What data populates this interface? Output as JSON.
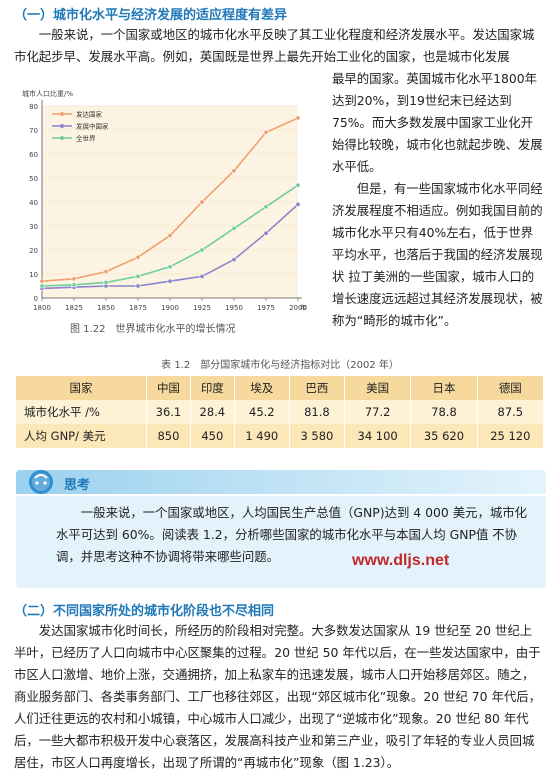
{
  "section1": {
    "title": "（一）城市化水平与经济发展的适应程度有差异",
    "para1_full": "一般来说，一个国家或地区的城市化水平反映了其工业化程度和经济发展水平。发达国家城市化起步早、发展水平高。例如，英国既是世界上最先开始工业化的国家，也是城市化发展",
    "para1_right": "最早的国家。英国城市化水平1800年达到20%，到19世纪末已经达到75%。而大多数发展中国家工业化开始得比较晚，城市化也就起步晚、发展水平低。",
    "para2_right": "但是，有一些国家城市化水平同经济发展程度不相适应。例如我国目前的城市化水平只有40%左右，低于世界平均水平，也落后于我国的经济发展现状 拉丁美洲的一些国家，城市人口的增长速度远远超过其经济发展现状，被称为“畸形的城市化”。"
  },
  "figure": {
    "caption": "图 1.22　世界城市化水平的增长情况"
  },
  "chart_data": {
    "type": "line",
    "ylabel": "城市人口比重/%",
    "xlabel": "年",
    "x": [
      1800,
      1825,
      1850,
      1875,
      1900,
      1925,
      1950,
      1975,
      2000
    ],
    "ylim": [
      0,
      80
    ],
    "yticks": [
      0,
      10,
      20,
      30,
      40,
      50,
      60,
      70,
      80
    ],
    "series": [
      {
        "name": "发达国家",
        "color": "#f0a070",
        "values": [
          7,
          8,
          11,
          17,
          26,
          40,
          53,
          69,
          75
        ]
      },
      {
        "name": "发展中国家",
        "color": "#8a84cc",
        "values": [
          4,
          4.5,
          5,
          5,
          7,
          9,
          16,
          27,
          39
        ]
      },
      {
        "name": "全世界",
        "color": "#6fcf9e",
        "values": [
          5,
          5.5,
          6.5,
          9,
          13,
          20,
          29,
          38,
          47
        ]
      }
    ],
    "legend_position": "top-left"
  },
  "table": {
    "caption": "表 1.2　部分国家城市化与经济指标对比（2002 年）",
    "header": [
      "国家",
      "中国",
      "印度",
      "埃及",
      "巴西",
      "美国",
      "日本",
      "德国"
    ],
    "rows": [
      [
        "城市化水平 /%",
        "36.1",
        "28.4",
        "45.2",
        "81.8",
        "77.2",
        "78.8",
        "87.5"
      ],
      [
        "人均 GNP/ 美元",
        "850",
        "450",
        "1 490",
        "3 580",
        "34 100",
        "35 620",
        "25 120"
      ]
    ]
  },
  "think": {
    "title": "思考",
    "text": "一般来说，一个国家或地区，人均国民生产总值（GNP)达到 4 000 美元，城市化水平可达到 60%。阅读表 1.2，分析哪些国家的城市化水平与本国人均 GNP值 不协调，并思考这种不协调将带来哪些问题。"
  },
  "watermark": "www.dljs.net",
  "section2": {
    "title": "（二）不同国家所处的城市化阶段也不尽相同",
    "para": "发达国家城市化时间长，所经历的阶段相对完整。大多数发达国家从 19 世纪至 20 世纪上半叶，已经历了人口向城市中心区聚集的过程。20 世纪 50 年代以后，在一些发达国家中，由于市区人口激增、地价上涨，交通拥挤，加上私家车的迅速发展，城市人口开始移居郊区。随之，商业服务部门、各类事务部门、工厂也移往郊区，出现“郊区城市化”现象。20 世纪 70 年代后，人们迁往更远的农村和小城镇，中心城市人口减少，出现了“逆城市化”现象。20 世纪 80 年代后，一些大都市积极开发中心衰落区，发展高科技产业和第三产业，吸引了年轻的专业人员回城居住，市区人口再度增长，出现了所谓的“再城市化”现象（图 1.23）。"
  }
}
